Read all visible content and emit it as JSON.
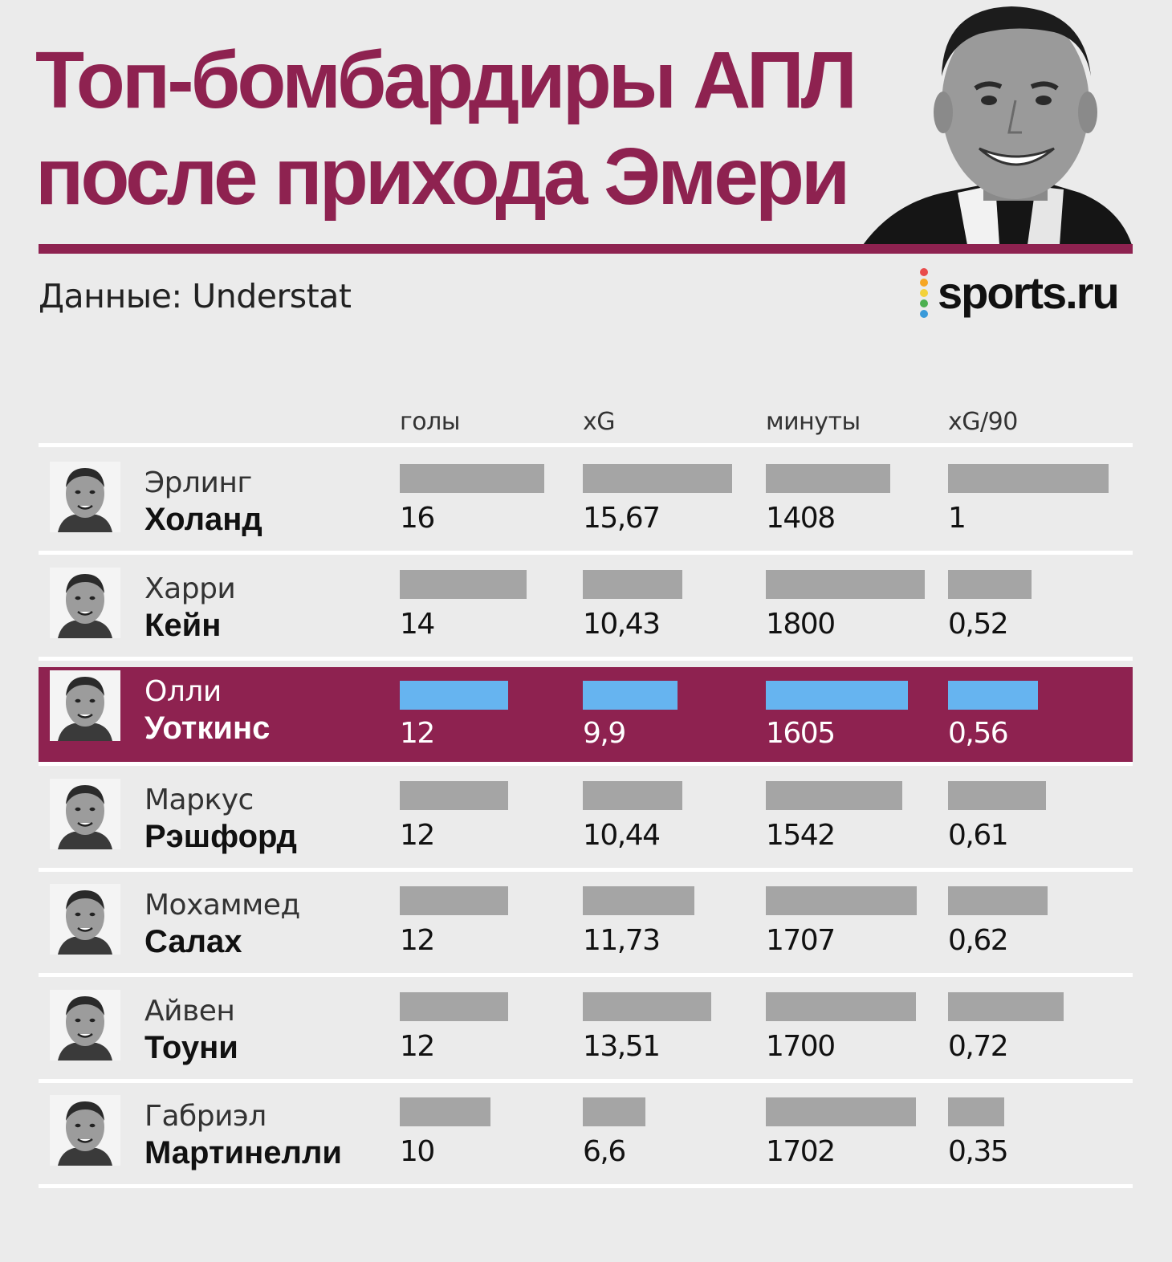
{
  "title": {
    "line1": "Топ-бомбардиры АПЛ",
    "line2": "после прихода Эмери"
  },
  "source": "Данные: Understat",
  "logo": {
    "text": "sports.ru",
    "dot_colors": [
      "#e94b4b",
      "#f6a623",
      "#f3d23a",
      "#4cb050",
      "#3a9ad9",
      "#9b59b6"
    ]
  },
  "colors": {
    "accent": "#8e2250",
    "bar": "#a5a5a5",
    "bar_highlight": "#66b4f0",
    "background": "#ebebeb"
  },
  "chart_data": {
    "type": "bar",
    "title": "Топ-бомбардиры АПЛ после прихода Эмери",
    "columns": [
      "голы",
      "xG",
      "минуты",
      "xG/90"
    ],
    "column_keys": [
      "goals",
      "xg",
      "minutes",
      "xg90"
    ],
    "column_labels": [
      "16",
      "15,67",
      "1408",
      "1"
    ],
    "highlighted_player": "Уоткинс",
    "players": [
      {
        "first": "Эрлинг",
        "last": "Холанд",
        "icon": "player-photo",
        "goals": 16,
        "xg": 15.67,
        "minutes": 1408,
        "xg90": 1.0,
        "labels": {
          "goals": "16",
          "xg": "15,67",
          "minutes": "1408",
          "xg90": "1"
        }
      },
      {
        "first": "Харри",
        "last": "Кейн",
        "icon": "player-photo",
        "goals": 14,
        "xg": 10.43,
        "minutes": 1800,
        "xg90": 0.52,
        "labels": {
          "goals": "14",
          "xg": "10,43",
          "minutes": "1800",
          "xg90": "0,52"
        }
      },
      {
        "first": "Олли",
        "last": "Уоткинс",
        "icon": "player-photo",
        "goals": 12,
        "xg": 9.9,
        "minutes": 1605,
        "xg90": 0.56,
        "labels": {
          "goals": "12",
          "xg": "9,9",
          "minutes": "1605",
          "xg90": "0,56"
        }
      },
      {
        "first": "Маркус",
        "last": "Рэшфорд",
        "icon": "player-photo",
        "goals": 12,
        "xg": 10.44,
        "minutes": 1542,
        "xg90": 0.61,
        "labels": {
          "goals": "12",
          "xg": "10,44",
          "minutes": "1542",
          "xg90": "0,61"
        }
      },
      {
        "first": "Мохаммед",
        "last": "Салах",
        "icon": "player-photo",
        "goals": 12,
        "xg": 11.73,
        "minutes": 1707,
        "xg90": 0.62,
        "labels": {
          "goals": "12",
          "xg": "11,73",
          "minutes": "1707",
          "xg90": "0,62"
        }
      },
      {
        "first": "Айвен",
        "last": "Тоуни",
        "icon": "player-photo",
        "goals": 12,
        "xg": 13.51,
        "minutes": 1700,
        "xg90": 0.72,
        "labels": {
          "goals": "12",
          "xg": "13,51",
          "minutes": "1700",
          "xg90": "0,72"
        }
      },
      {
        "first": "Габриэл",
        "last": "Мартинелли",
        "icon": "player-photo",
        "goals": 10,
        "xg": 6.6,
        "minutes": 1702,
        "xg90": 0.35,
        "labels": {
          "goals": "10",
          "xg": "6,6",
          "minutes": "1702",
          "xg90": "0,35"
        }
      }
    ]
  }
}
